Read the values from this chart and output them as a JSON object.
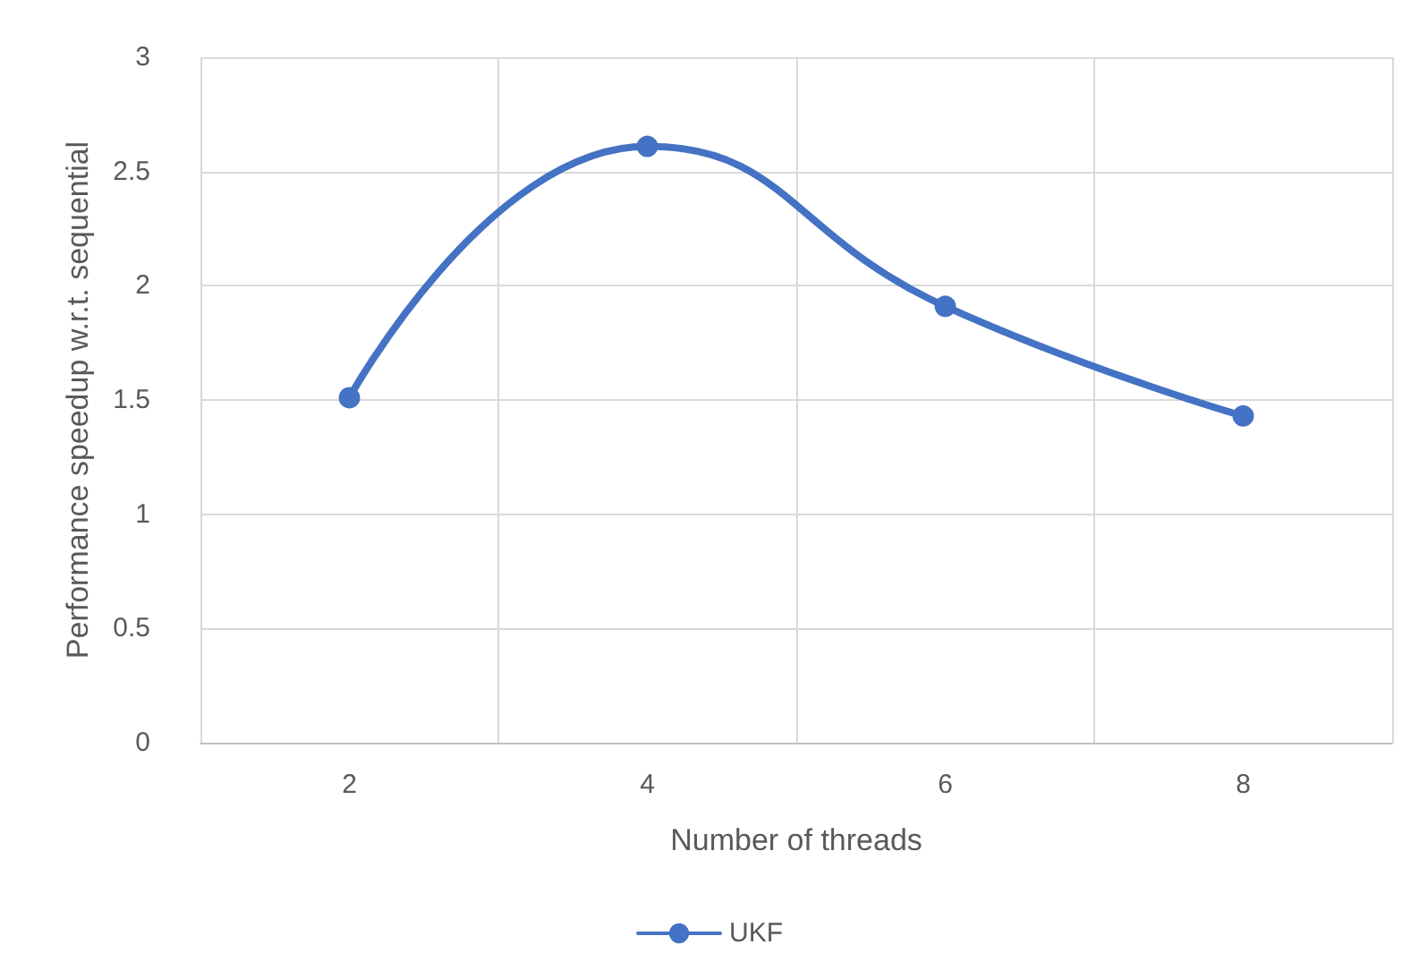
{
  "chart_data": {
    "type": "line",
    "xlabel": "Number of threads",
    "ylabel": "Performance speedup w.r.t. sequential",
    "categories": [
      "2",
      "4",
      "6",
      "8"
    ],
    "series": [
      {
        "name": "UKF",
        "color": "#4472c4",
        "values": [
          1.51,
          2.61,
          1.91,
          1.43
        ]
      }
    ],
    "ylim": [
      0,
      3
    ],
    "yticks": [
      0,
      0.5,
      1,
      1.5,
      2,
      2.5,
      3
    ],
    "grid": true,
    "legend": "bottom",
    "marker": "circle",
    "line_style": "solid"
  }
}
